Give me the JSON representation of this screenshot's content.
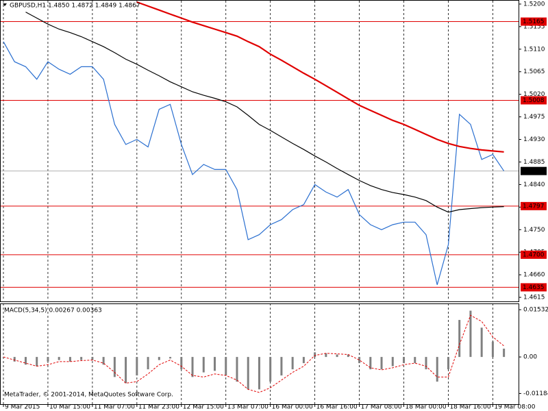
{
  "chart_data": [
    {
      "type": "line",
      "title": "GBPUSD,H1  1.4850 1.4872 1.4849 1.4867",
      "x": [
        0,
        4,
        8,
        12,
        16,
        20,
        24,
        28,
        32,
        36,
        40,
        44,
        48,
        52,
        56,
        60,
        64,
        68,
        72,
        76,
        80,
        84,
        88,
        92,
        96,
        100,
        104,
        108,
        112,
        116,
        120,
        124,
        128,
        132,
        136,
        140,
        144,
        148,
        152,
        156,
        160,
        164,
        168,
        172,
        176,
        180
      ],
      "series": [
        {
          "color": "#2a6fd0",
          "values": [
            1.5125,
            1.5085,
            1.5075,
            1.505,
            1.5085,
            1.507,
            1.506,
            1.5075,
            1.5075,
            1.505,
            1.496,
            1.492,
            1.493,
            1.4915,
            1.499,
            1.5,
            1.492,
            1.486,
            1.488,
            1.487,
            1.487,
            1.483,
            1.473,
            1.474,
            1.476,
            1.477,
            1.479,
            1.48,
            1.484,
            1.4825,
            1.4815,
            1.483,
            1.478,
            1.476,
            1.475,
            1.476,
            1.4765,
            1.4765,
            1.474,
            1.464,
            1.472,
            1.498,
            1.496,
            1.489,
            1.49,
            1.4867
          ]
        },
        {
          "color": "#e00000",
          "values": [
            null,
            null,
            null,
            null,
            null,
            null,
            null,
            null,
            null,
            null,
            null,
            null,
            1.5204,
            1.5196,
            1.5188,
            1.518,
            1.5172,
            1.5164,
            1.5157,
            1.515,
            1.5143,
            1.5136,
            1.5125,
            1.5115,
            1.51,
            1.5088,
            1.5075,
            1.5062,
            1.505,
            1.5037,
            1.5024,
            1.5011,
            1.4998,
            1.4988,
            1.4978,
            1.4968,
            1.496,
            1.495,
            1.494,
            1.493,
            1.4922,
            1.4916,
            1.4912,
            1.4909,
            1.4907,
            1.4905
          ]
        },
        {
          "color": "#000000",
          "values": [
            null,
            null,
            1.5184,
            1.5172,
            1.516,
            1.515,
            1.5143,
            1.5135,
            1.5125,
            1.5115,
            1.5103,
            1.509,
            1.508,
            1.5068,
            1.5057,
            1.5045,
            1.5035,
            1.5025,
            1.5018,
            1.5012,
            1.5005,
            1.4995,
            1.4978,
            1.496,
            1.4948,
            1.4935,
            1.4922,
            1.491,
            1.4897,
            1.4885,
            1.4872,
            1.486,
            1.4848,
            1.4838,
            1.483,
            1.4824,
            1.482,
            1.4815,
            1.4808,
            1.4795,
            1.4785,
            1.479,
            1.4792,
            1.4794,
            1.4795,
            1.4796
          ]
        }
      ],
      "xlim": [
        0,
        186
      ],
      "xticks": [
        {
          "value": 0,
          "label": "9 Mar 2015"
        },
        {
          "value": 16,
          "label": "10 Mar 15:00"
        },
        {
          "value": 32,
          "label": "11 Mar 07:00"
        },
        {
          "value": 48,
          "label": "11 Mar 23:00"
        },
        {
          "value": 64,
          "label": "12 Mar 15:00"
        },
        {
          "value": 80,
          "label": "13 Mar 07:00"
        },
        {
          "value": 96,
          "label": "16 Mar 00:00"
        },
        {
          "value": 112,
          "label": "16 Mar 16:00"
        },
        {
          "value": 128,
          "label": "17 Mar 08:00"
        },
        {
          "value": 144,
          "label": "18 Mar 00:00"
        },
        {
          "value": 160,
          "label": "18 Mar 16:00"
        },
        {
          "value": 176,
          "label": "19 Mar 08:00"
        }
      ],
      "ylim": [
        1.4611,
        1.5204
      ],
      "yticks": [
        {
          "value": 1.52,
          "label": "1.5200"
        },
        1.5155,
        {
          "value": 1.511,
          "label": "1.5110"
        },
        1.5065,
        {
          "value": 1.502,
          "label": "1.5020"
        },
        1.4975,
        {
          "value": 1.493,
          "label": "1.4930"
        },
        1.4885,
        {
          "value": 1.484,
          "label": "1.4840"
        },
        1.4795,
        {
          "value": 1.475,
          "label": "1.4750"
        },
        1.4705,
        {
          "value": 1.466,
          "label": "1.4660"
        },
        1.4615
      ],
      "levels": [
        1.5165,
        1.5008,
        1.4797,
        {
          "value": 1.47,
          "label": "1.4700"
        },
        1.4635
      ],
      "level_color": "#e00000",
      "current": 1.4867,
      "grid": true
    },
    {
      "type": "bar",
      "title": "MACD(5,34,5) 0.00267 0.00363",
      "x": [
        0,
        4,
        8,
        12,
        16,
        20,
        24,
        28,
        32,
        36,
        40,
        44,
        48,
        52,
        56,
        60,
        64,
        68,
        72,
        76,
        80,
        84,
        88,
        92,
        96,
        100,
        104,
        108,
        112,
        116,
        120,
        124,
        128,
        132,
        136,
        140,
        144,
        148,
        152,
        156,
        160,
        164,
        168,
        172,
        176,
        180
      ],
      "series": [
        {
          "color": "#808080",
          "values": [
            0,
            -0.0015,
            -0.0025,
            -0.003,
            -0.0015,
            -0.001,
            -0.0015,
            -0.001,
            -0.001,
            -0.0025,
            -0.0065,
            -0.0085,
            -0.006,
            -0.004,
            -0.001,
            -0.0005,
            -0.004,
            -0.0065,
            -0.005,
            -0.0045,
            -0.006,
            -0.008,
            -0.0105,
            -0.0105,
            -0.008,
            -0.006,
            -0.004,
            -0.002,
            0.0015,
            0.0012,
            0.0008,
            0.0008,
            -0.002,
            -0.004,
            -0.004,
            -0.003,
            -0.002,
            -0.002,
            -0.004,
            -0.008,
            -0.004,
            0.012,
            0.015,
            0.0095,
            0.005,
            0.0027
          ]
        },
        {
          "color": "#e00000",
          "values": [
            0,
            -0.001,
            -0.002,
            -0.003,
            -0.0025,
            -0.0015,
            -0.0015,
            -0.0012,
            -0.001,
            -0.002,
            -0.005,
            -0.0085,
            -0.008,
            -0.0055,
            -0.0025,
            -0.001,
            -0.003,
            -0.006,
            -0.0065,
            -0.0055,
            -0.006,
            -0.0075,
            -0.0105,
            -0.0115,
            -0.01,
            -0.0075,
            -0.005,
            -0.003,
            0.0005,
            0.0012,
            0.001,
            0.0008,
            -0.001,
            -0.0035,
            -0.0042,
            -0.0035,
            -0.0025,
            -0.002,
            -0.003,
            -0.0065,
            -0.0065,
            0.004,
            0.0135,
            0.0115,
            0.0065,
            0.0036
          ]
        }
      ],
      "xlim": [
        0,
        186
      ],
      "ylim": [
        -0.0153,
        0.0169
      ],
      "yticks": [
        {
          "value": 0.01532,
          "label": "0.01532"
        },
        {
          "value": 0,
          "label": "0.00"
        },
        {
          "value": -0.01184,
          "label": "-0.01184"
        }
      ]
    }
  ],
  "footer": "MetaTrader, © 2001-2014, MetaQuotes Software Corp."
}
